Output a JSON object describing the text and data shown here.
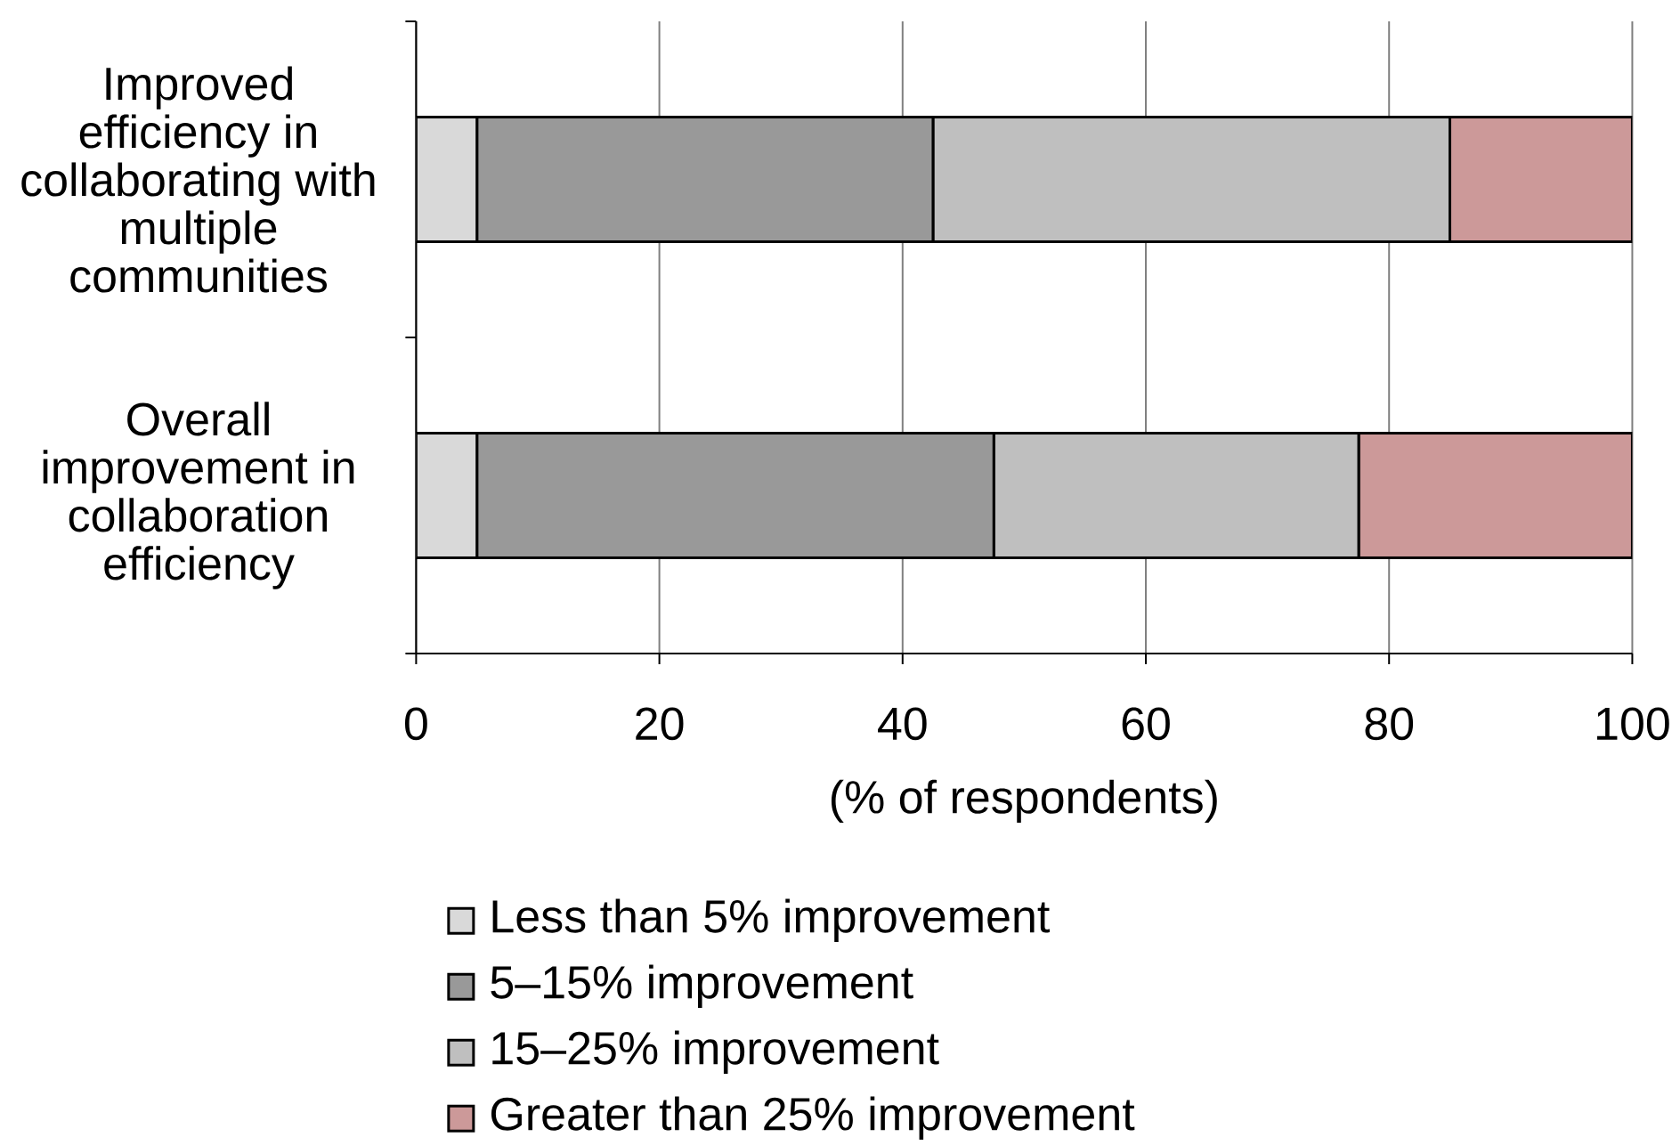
{
  "chart_data": {
    "type": "bar",
    "orientation": "horizontal",
    "stacked": true,
    "categories": [
      "Improved efficiency in collaborating with multiple communities",
      "Overall improvement in collaboration efficiency"
    ],
    "series": [
      {
        "name": "Less than 5% improvement",
        "color": "#d9d9d9",
        "values": [
          5,
          5
        ]
      },
      {
        "name": "5–15% improvement",
        "color": "#999999",
        "values": [
          37.5,
          42.5
        ]
      },
      {
        "name": "15–25% improvement",
        "color": "#bfbfbf",
        "values": [
          42.5,
          30
        ]
      },
      {
        "name": "Greater than 25% improvement",
        "color": "#cc9999",
        "values": [
          15,
          22.5
        ]
      }
    ],
    "xlabel": "(% of respondents)",
    "xlim": [
      0,
      100
    ],
    "xticks": [
      0,
      20,
      40,
      60,
      80,
      100
    ],
    "grid": "x",
    "legend": "bottom"
  }
}
